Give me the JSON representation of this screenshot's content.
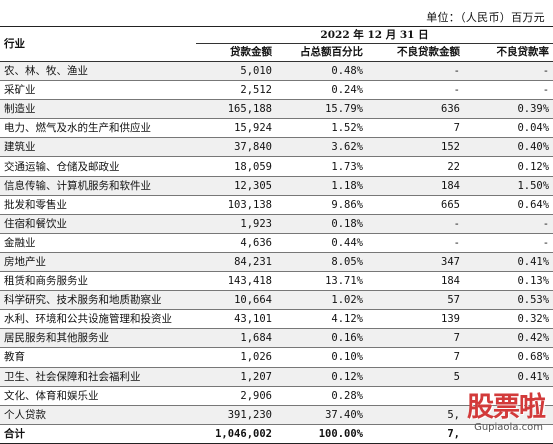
{
  "unit_label": "单位：（人民币）百万元",
  "header": {
    "industry": "行业",
    "date": "2022 年 12 月 31 日",
    "columns": [
      "贷款金额",
      "占总额百分比",
      "不良贷款金额",
      "不良贷款率"
    ]
  },
  "rows": [
    {
      "name": "农、林、牧、渔业",
      "loan": "5,010",
      "pct": "0.48%",
      "npl": "-",
      "npl_rate": "-"
    },
    {
      "name": "采矿业",
      "loan": "2,512",
      "pct": "0.24%",
      "npl": "-",
      "npl_rate": "-"
    },
    {
      "name": "制造业",
      "loan": "165,188",
      "pct": "15.79%",
      "npl": "636",
      "npl_rate": "0.39%"
    },
    {
      "name": "电力、燃气及水的生产和供应业",
      "loan": "15,924",
      "pct": "1.52%",
      "npl": "7",
      "npl_rate": "0.04%"
    },
    {
      "name": "建筑业",
      "loan": "37,840",
      "pct": "3.62%",
      "npl": "152",
      "npl_rate": "0.40%"
    },
    {
      "name": "交通运输、仓储及邮政业",
      "loan": "18,059",
      "pct": "1.73%",
      "npl": "22",
      "npl_rate": "0.12%"
    },
    {
      "name": "信息传输、计算机服务和软件业",
      "loan": "12,305",
      "pct": "1.18%",
      "npl": "184",
      "npl_rate": "1.50%"
    },
    {
      "name": "批发和零售业",
      "loan": "103,138",
      "pct": "9.86%",
      "npl": "665",
      "npl_rate": "0.64%"
    },
    {
      "name": "住宿和餐饮业",
      "loan": "1,923",
      "pct": "0.18%",
      "npl": "-",
      "npl_rate": "-"
    },
    {
      "name": "金融业",
      "loan": "4,636",
      "pct": "0.44%",
      "npl": "-",
      "npl_rate": "-"
    },
    {
      "name": "房地产业",
      "loan": "84,231",
      "pct": "8.05%",
      "npl": "347",
      "npl_rate": "0.41%"
    },
    {
      "name": "租赁和商务服务业",
      "loan": "143,418",
      "pct": "13.71%",
      "npl": "184",
      "npl_rate": "0.13%"
    },
    {
      "name": "科学研究、技术服务和地质勘察业",
      "loan": "10,664",
      "pct": "1.02%",
      "npl": "57",
      "npl_rate": "0.53%"
    },
    {
      "name": "水利、环境和公共设施管理和投资业",
      "loan": "43,101",
      "pct": "4.12%",
      "npl": "139",
      "npl_rate": "0.32%"
    },
    {
      "name": "居民服务和其他服务业",
      "loan": "1,684",
      "pct": "0.16%",
      "npl": "7",
      "npl_rate": "0.42%"
    },
    {
      "name": "教育",
      "loan": "1,026",
      "pct": "0.10%",
      "npl": "7",
      "npl_rate": "0.68%"
    },
    {
      "name": "卫生、社会保障和社会福利业",
      "loan": "1,207",
      "pct": "0.12%",
      "npl": "5",
      "npl_rate": "0.41%"
    },
    {
      "name": "文化、体育和娱乐业",
      "loan": "2,906",
      "pct": "0.28%",
      "npl": "",
      "npl_rate": ""
    },
    {
      "name": "个人贷款",
      "loan": "391,230",
      "pct": "37.40%",
      "npl": "5,",
      "npl_rate": ""
    }
  ],
  "total": {
    "name": "合计",
    "loan": "1,046,002",
    "pct": "100.00%",
    "npl": "7,",
    "npl_rate": ""
  },
  "watermark": {
    "text": "股票啦",
    "url": "Gupiaola.com"
  }
}
